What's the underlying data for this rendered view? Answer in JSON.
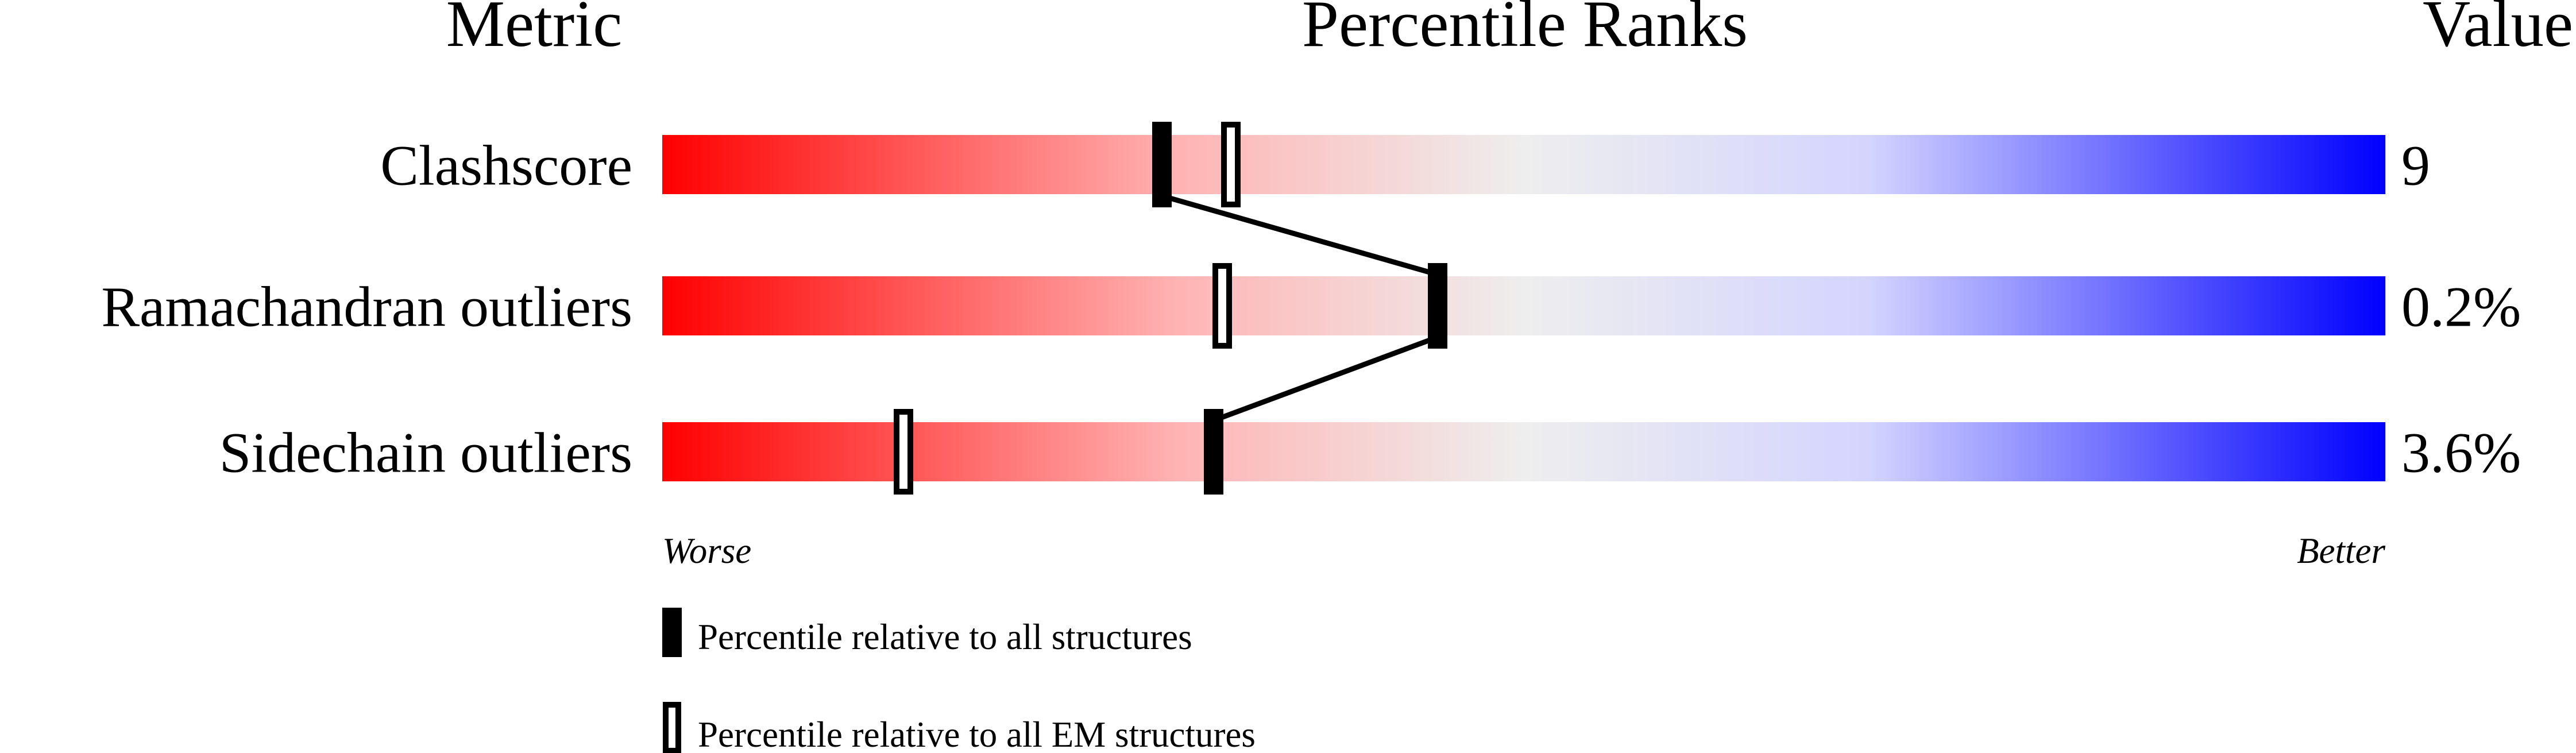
{
  "headers": {
    "metric": "Metric",
    "percentile": "Percentile Ranks",
    "value": "Value"
  },
  "chart_data": {
    "type": "percentile-slider",
    "xlim": [
      0,
      100
    ],
    "rows": [
      {
        "metric": "Clashscore",
        "value": "9",
        "percentile_all": 29,
        "percentile_em": 33
      },
      {
        "metric": "Ramachandran outliers",
        "value": "0.2%",
        "percentile_all": 45,
        "percentile_em": 32.5
      },
      {
        "metric": "Sidechain outliers",
        "value": "3.6%",
        "percentile_all": 32,
        "percentile_em": 14
      }
    ],
    "axis": {
      "left": "Worse",
      "right": "Better"
    },
    "gradient_colors": [
      "#ff0000",
      "#eeeeee",
      "#0000ff"
    ],
    "legend": [
      {
        "marker": "filled",
        "label": "Percentile relative to all structures"
      },
      {
        "marker": "open",
        "label": "Percentile relative to all EM structures"
      }
    ]
  }
}
